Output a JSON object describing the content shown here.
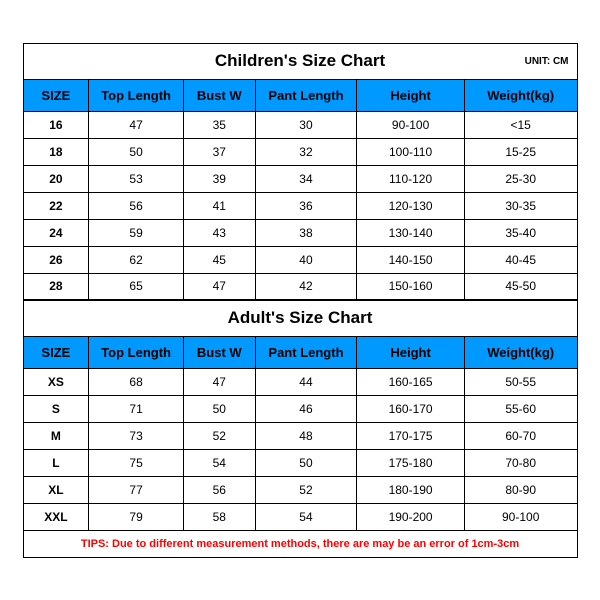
{
  "children_chart": {
    "title": "Children's Size Chart",
    "unit": "UNIT: CM",
    "columns": [
      "SIZE",
      "Top Length",
      "Bust W",
      "Pant Length",
      "Height",
      "Weight(kg)"
    ],
    "rows": [
      [
        "16",
        "47",
        "35",
        "30",
        "90-100",
        "<15"
      ],
      [
        "18",
        "50",
        "37",
        "32",
        "100-110",
        "15-25"
      ],
      [
        "20",
        "53",
        "39",
        "34",
        "110-120",
        "25-30"
      ],
      [
        "22",
        "56",
        "41",
        "36",
        "120-130",
        "30-35"
      ],
      [
        "24",
        "59",
        "43",
        "38",
        "130-140",
        "35-40"
      ],
      [
        "26",
        "62",
        "45",
        "40",
        "140-150",
        "40-45"
      ],
      [
        "28",
        "65",
        "47",
        "42",
        "150-160",
        "45-50"
      ]
    ]
  },
  "adult_chart": {
    "title": "Adult's Size Chart",
    "columns": [
      "SIZE",
      "Top Length",
      "Bust W",
      "Pant Length",
      "Height",
      "Weight(kg)"
    ],
    "rows": [
      [
        "XS",
        "68",
        "47",
        "44",
        "160-165",
        "50-55"
      ],
      [
        "S",
        "71",
        "50",
        "46",
        "160-170",
        "55-60"
      ],
      [
        "M",
        "73",
        "52",
        "48",
        "170-175",
        "60-70"
      ],
      [
        "L",
        "75",
        "54",
        "50",
        "175-180",
        "70-80"
      ],
      [
        "XL",
        "77",
        "56",
        "52",
        "180-190",
        "80-90"
      ],
      [
        "XXL",
        "79",
        "58",
        "54",
        "190-200",
        "90-100"
      ]
    ]
  },
  "tips": "TIPS: Due to different measurement methods, there are may be an error of 1cm-3cm",
  "colors": {
    "header_bg": "#0099ff",
    "border": "#000000",
    "text": "#000000",
    "tips_text": "#ff0000",
    "background": "#ffffff"
  }
}
